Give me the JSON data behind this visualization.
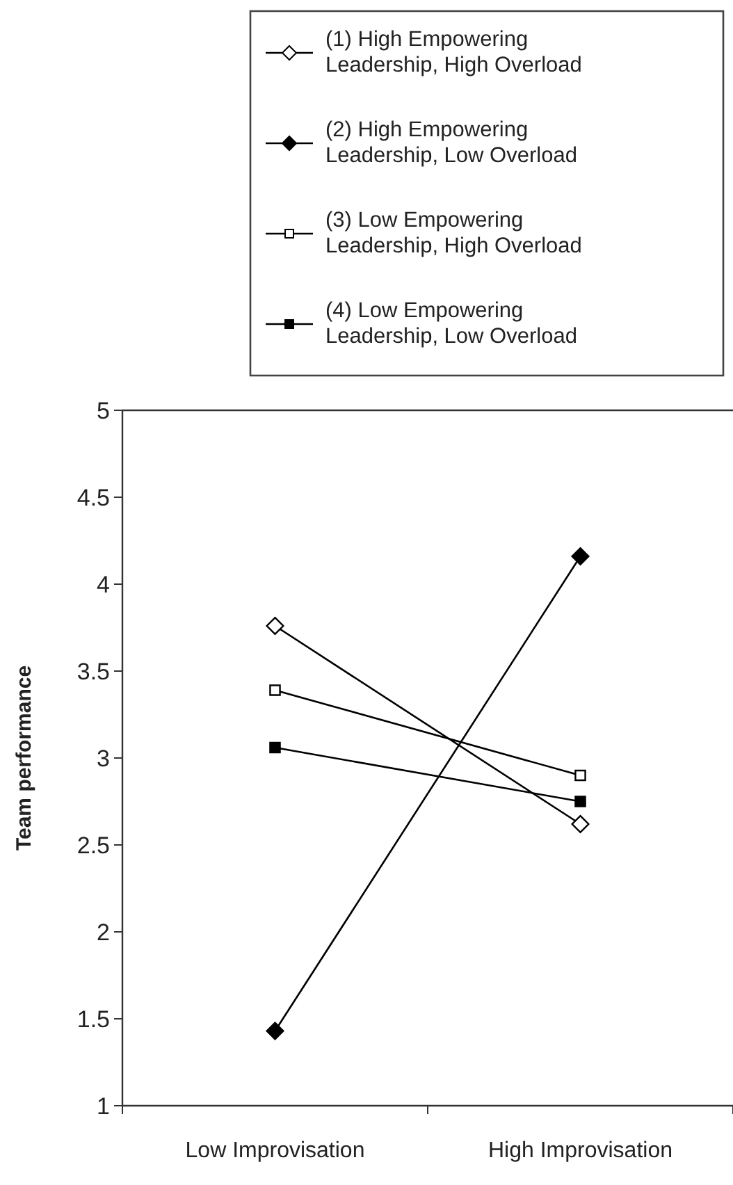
{
  "chart_data": {
    "type": "line",
    "ylabel": "Team performance",
    "categories": [
      "Low Improvisation",
      "High Improvisation"
    ],
    "series": [
      {
        "name": "(1) High Empowering Leadership, High Overload",
        "color": "#000000",
        "marker": "diamond",
        "values": [
          3.76,
          2.62
        ]
      },
      {
        "name": "(2) High Empowering Leadership, Low Overload",
        "color": "#000000",
        "marker": "diamond",
        "values": [
          1.43,
          4.16
        ]
      },
      {
        "name": "(3) Low Empowering Leadership, High Overload",
        "color": "#000000",
        "marker": "square",
        "values": [
          3.39,
          2.9
        ]
      },
      {
        "name": "(4) Low Empowering Leadership, Low Overload",
        "color": "#000000",
        "marker": "square",
        "values": [
          3.06,
          2.75
        ]
      }
    ],
    "ylim": [
      1,
      5
    ],
    "yticks": [
      1,
      1.5,
      2,
      2.5,
      3,
      3.5,
      4,
      4.5,
      5
    ],
    "legend": "top right",
    "grid": false,
    "line_style": "solid"
  }
}
